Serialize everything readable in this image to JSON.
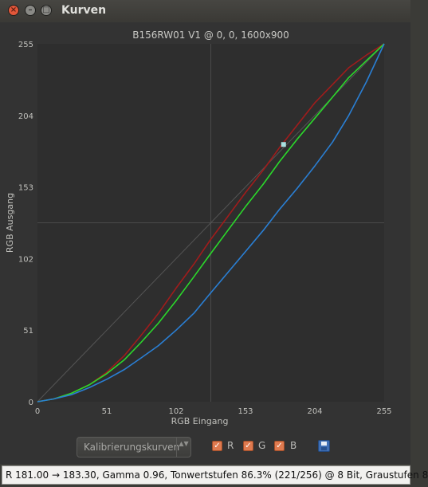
{
  "window": {
    "title": "Kurven",
    "close_symbol": "×",
    "minimize_symbol": "–",
    "maximize_symbol": "□"
  },
  "chart_data": {
    "type": "line",
    "title": "B156RW01 V1 @ 0, 0, 1600x900",
    "xlabel": "RGB Eingang",
    "ylabel": "RGB Ausgang",
    "xlim": [
      0,
      255
    ],
    "ylim": [
      0,
      255
    ],
    "x_ticks": [
      "0",
      "51",
      "102",
      "153",
      "204",
      "255"
    ],
    "y_ticks": [
      "0",
      "51",
      "102",
      "153",
      "204",
      "255"
    ],
    "grid": "center lines at 127.5",
    "reference_line": {
      "color": "#555555",
      "points": [
        [
          0,
          0
        ],
        [
          255,
          255
        ]
      ]
    },
    "marker": {
      "x": 181,
      "y": 183.3,
      "color": "#a8dfe0"
    },
    "series": [
      {
        "color": "#a01c1c",
        "points": [
          [
            0,
            0
          ],
          [
            12,
            2
          ],
          [
            25,
            6
          ],
          [
            38,
            12
          ],
          [
            51,
            21
          ],
          [
            64,
            33
          ],
          [
            76,
            47
          ],
          [
            89,
            63
          ],
          [
            102,
            81
          ],
          [
            115,
            98
          ],
          [
            127,
            115
          ],
          [
            140,
            132
          ],
          [
            153,
            149
          ],
          [
            166,
            165
          ],
          [
            178,
            181
          ],
          [
            191,
            197
          ],
          [
            204,
            213
          ],
          [
            217,
            226
          ],
          [
            229,
            238
          ],
          [
            242,
            247
          ],
          [
            255,
            255
          ]
        ]
      },
      {
        "color": "#2bd92b",
        "points": [
          [
            0,
            0
          ],
          [
            12,
            2
          ],
          [
            25,
            6
          ],
          [
            38,
            12
          ],
          [
            51,
            20
          ],
          [
            64,
            30
          ],
          [
            76,
            42
          ],
          [
            89,
            56
          ],
          [
            102,
            72
          ],
          [
            115,
            89
          ],
          [
            127,
            105
          ],
          [
            140,
            122
          ],
          [
            153,
            139
          ],
          [
            166,
            155
          ],
          [
            178,
            171
          ],
          [
            191,
            187
          ],
          [
            204,
            202
          ],
          [
            217,
            217
          ],
          [
            229,
            231
          ],
          [
            242,
            243
          ],
          [
            255,
            255
          ]
        ]
      },
      {
        "color": "#2a7fd4",
        "points": [
          [
            0,
            0
          ],
          [
            12,
            2
          ],
          [
            25,
            5
          ],
          [
            38,
            10
          ],
          [
            51,
            16
          ],
          [
            64,
            23
          ],
          [
            76,
            31
          ],
          [
            89,
            40
          ],
          [
            102,
            51
          ],
          [
            115,
            63
          ],
          [
            127,
            77
          ],
          [
            140,
            92
          ],
          [
            153,
            107
          ],
          [
            166,
            122
          ],
          [
            178,
            137
          ],
          [
            191,
            152
          ],
          [
            204,
            168
          ],
          [
            217,
            185
          ],
          [
            229,
            204
          ],
          [
            242,
            228
          ],
          [
            255,
            255
          ]
        ]
      }
    ]
  },
  "controls": {
    "combo_label": "Kalibrierungskurven",
    "combo_arrows": "▲▼",
    "check_mark": "✓",
    "r_label": "R",
    "g_label": "G",
    "b_label": "B"
  },
  "status": {
    "text": "R 181.00 → 183.30, Gamma 0.96, Tonwertstufen 86.3% (221/256) @ 8 Bit, Graustufen 8"
  }
}
